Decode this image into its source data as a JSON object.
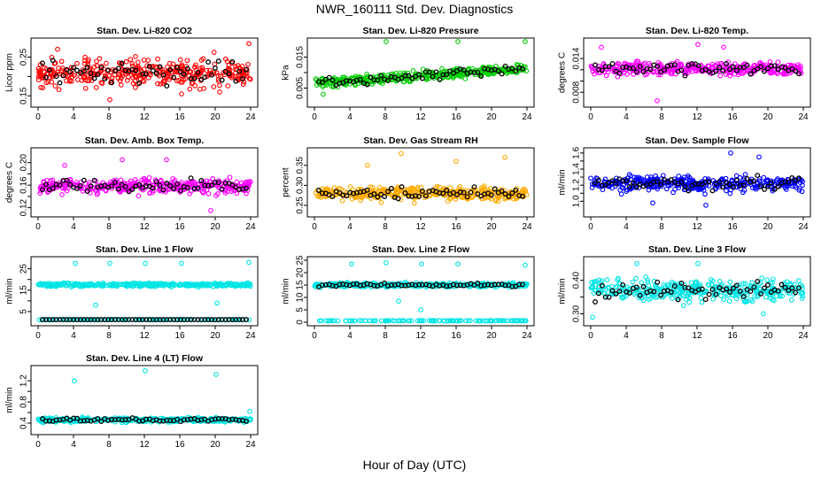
{
  "title": "NWR_160111  Std. Dev. Diagnostics",
  "xlabel": "Hour of Day (UTC)",
  "chart_data": [
    {
      "type": "scatter",
      "title": "Stan. Dev. Li-820 CO2",
      "ylabel": "Licor ppm",
      "xlim": [
        0,
        24
      ],
      "ylim": [
        0.13,
        0.29
      ],
      "xticks": [
        0,
        4,
        8,
        12,
        16,
        20,
        24
      ],
      "yticks": [
        0.15,
        0.2,
        0.25
      ],
      "ytick_labels": [
        "0.15",
        "",
        "0.25"
      ],
      "color": "#ff0000",
      "center": 0.21,
      "spread": 0.035,
      "outliers": [
        [
          2.2,
          0.27
        ],
        [
          8.1,
          0.14
        ],
        [
          16.2,
          0.155
        ],
        [
          23.8,
          0.285
        ],
        [
          20.5,
          0.16
        ]
      ]
    },
    {
      "type": "scatter",
      "title": "Stan. Dev. Li-820 Pressure",
      "ylabel": "kPa",
      "xlim": [
        0,
        24
      ],
      "ylim": [
        0.0,
        0.02
      ],
      "xticks": [
        0,
        4,
        8,
        12,
        16,
        20,
        24
      ],
      "yticks": [
        0.005,
        0.01,
        0.015
      ],
      "ytick_labels": [
        "0.005",
        "",
        "0.015"
      ],
      "color": "#00cc00",
      "center": 0.0065,
      "trend": 0.0002,
      "spread": 0.0016,
      "outliers": [
        [
          8.1,
          0.02
        ],
        [
          16.2,
          0.02
        ],
        [
          23.8,
          0.02
        ],
        [
          1.0,
          0.003
        ]
      ]
    },
    {
      "type": "scatter",
      "title": "Stan. Dev. Li-820 Temp.",
      "ylabel": "degrees C",
      "xlim": [
        0,
        24
      ],
      "ylim": [
        0.006,
        0.017
      ],
      "xticks": [
        0,
        4,
        8,
        12,
        16,
        20,
        24
      ],
      "yticks": [
        0.008,
        0.01,
        0.012,
        0.014
      ],
      "ytick_labels": [
        "0.008",
        "",
        "",
        "0.014"
      ],
      "color": "#ff00ff",
      "center": 0.0122,
      "spread": 0.0011,
      "outliers": [
        [
          7.5,
          0.0065
        ],
        [
          12.1,
          0.0165
        ],
        [
          15.0,
          0.016
        ],
        [
          1.2,
          0.016
        ]
      ]
    },
    {
      "type": "scatter",
      "title": "Stan. Dev. Amb. Box Temp.",
      "ylabel": "degrees C",
      "xlim": [
        0,
        24
      ],
      "ylim": [
        0.11,
        0.22
      ],
      "xticks": [
        0,
        4,
        8,
        12,
        16,
        20,
        24
      ],
      "yticks": [
        0.12,
        0.14,
        0.16,
        0.18,
        0.2
      ],
      "ytick_labels": [
        "0.12",
        "",
        "0.16",
        "",
        "0.20"
      ],
      "color": "#ff00ff",
      "center": 0.158,
      "spread": 0.012,
      "outliers": [
        [
          3.0,
          0.195
        ],
        [
          9.5,
          0.205
        ],
        [
          14.5,
          0.205
        ],
        [
          19.5,
          0.115
        ]
      ]
    },
    {
      "type": "scatter",
      "title": "Stan. Dev. Gas Stream RH",
      "ylabel": "percent",
      "xlim": [
        0,
        24
      ],
      "ylim": [
        0.23,
        0.385
      ],
      "xticks": [
        0,
        4,
        8,
        12,
        16,
        20,
        24
      ],
      "yticks": [
        0.25,
        0.3,
        0.35
      ],
      "ytick_labels": [
        "0.25",
        "0.30",
        "0.35"
      ],
      "color": "#ffaa00",
      "center": 0.28,
      "spread": 0.016,
      "outliers": [
        [
          9.8,
          0.38
        ],
        [
          16.0,
          0.36
        ],
        [
          21.5,
          0.37
        ],
        [
          6.0,
          0.35
        ]
      ]
    },
    {
      "type": "scatter",
      "title": "Stan. Dev. Sample Flow",
      "ylabel": "ml/min",
      "xlim": [
        0,
        24
      ],
      "ylim": [
        0.85,
        1.62
      ],
      "xticks": [
        0,
        4,
        8,
        12,
        16,
        20,
        24
      ],
      "yticks": [
        1.0,
        1.1,
        1.2,
        1.3,
        1.4,
        1.5,
        1.6
      ],
      "ytick_labels": [
        "1.0",
        "",
        "1.2",
        "",
        "1.4",
        "",
        "1.6"
      ],
      "color": "#0000ff",
      "center": 1.22,
      "spread": 0.09,
      "outliers": [
        [
          15.8,
          1.6
        ],
        [
          19.0,
          1.55
        ],
        [
          7.0,
          0.98
        ],
        [
          13.0,
          0.95
        ]
      ]
    },
    {
      "type": "scatter",
      "title": "Stan. Dev. Line 1 Flow",
      "ylabel": "ml/min",
      "xlim": [
        0,
        24
      ],
      "ylim": [
        0,
        29
      ],
      "xticks": [
        0,
        4,
        8,
        12,
        16,
        20,
        24
      ],
      "yticks": [
        5,
        10,
        15,
        20,
        25
      ],
      "ytick_labels": [
        "5",
        "",
        "15",
        "",
        "25"
      ],
      "color": "#00e5e5",
      "center": 17.5,
      "spread": 0.8,
      "low_band": 1.2,
      "outliers": [
        [
          4.2,
          27.5
        ],
        [
          8.1,
          27.5
        ],
        [
          12.1,
          27.5
        ],
        [
          16.2,
          27.5
        ],
        [
          23.8,
          28
        ],
        [
          6.5,
          8.0
        ],
        [
          20.2,
          9.0
        ]
      ]
    },
    {
      "type": "scatter",
      "title": "Stan. Dev. Line 2 Flow",
      "ylabel": "ml/min",
      "xlim": [
        0,
        24
      ],
      "ylim": [
        0,
        25
      ],
      "xticks": [
        0,
        4,
        8,
        12,
        16,
        20,
        24
      ],
      "yticks": [
        0,
        5,
        10,
        15,
        20,
        25
      ],
      "ytick_labels": [
        "0",
        "5",
        "10",
        "15",
        "20",
        "25"
      ],
      "color": "#00e5e5",
      "center": 15.0,
      "spread": 0.8,
      "low_band": 0.6,
      "outliers": [
        [
          4.2,
          23.5
        ],
        [
          8.1,
          24
        ],
        [
          12.1,
          23.5
        ],
        [
          16.2,
          23.5
        ],
        [
          23.8,
          23
        ],
        [
          9.5,
          8.5
        ],
        [
          12.0,
          5.0
        ]
      ]
    },
    {
      "type": "scatter",
      "title": "Stan. Dev. Line 3 Flow",
      "ylabel": "ml/min",
      "xlim": [
        0,
        24
      ],
      "ylim": [
        0.275,
        0.46
      ],
      "xticks": [
        0,
        4,
        8,
        12,
        16,
        20,
        24
      ],
      "yticks": [
        0.3,
        0.35,
        0.4
      ],
      "ytick_labels": [
        "0.30",
        "",
        "0.40"
      ],
      "color": "#00e5e5",
      "center": 0.37,
      "spread": 0.03,
      "outliers": [
        [
          5.2,
          0.45
        ],
        [
          12.1,
          0.45
        ],
        [
          19.5,
          0.3
        ],
        [
          0.2,
          0.29
        ]
      ]
    },
    {
      "type": "scatter",
      "title": "Stan. Dev. Line 4 (LT) Flow",
      "ylabel": "ml/min",
      "xlim": [
        0,
        24
      ],
      "ylim": [
        0.25,
        1.42
      ],
      "xticks": [
        0,
        4,
        8,
        12,
        16,
        20,
        24
      ],
      "yticks": [
        0.4,
        0.6,
        0.8,
        1.0,
        1.2
      ],
      "ytick_labels": [
        "0.4",
        "",
        "0.8",
        "",
        "1.2"
      ],
      "color": "#00e5e5",
      "center": 0.46,
      "spread": 0.04,
      "outliers": [
        [
          4.1,
          1.2
        ],
        [
          12.1,
          1.39
        ],
        [
          20.1,
          1.32
        ],
        [
          23.9,
          0.62
        ]
      ]
    }
  ]
}
